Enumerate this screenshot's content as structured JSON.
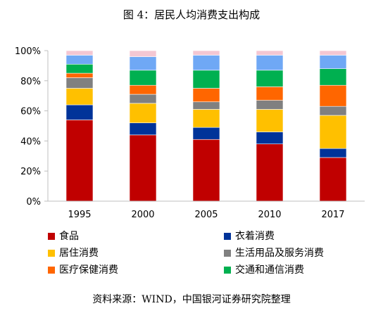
{
  "title": "图 4：居民人均消费支出构成",
  "source": "资料来源：WIND，中国银河证券研究院整理",
  "colors": {
    "food": "#c00000",
    "clothing": "#003399",
    "housing": "#ffc000",
    "household": "#808080",
    "medical": "#ff6600",
    "transport": "#00b050",
    "education": "#6fa8f5",
    "other": "#f4c7d3"
  },
  "chart_data": {
    "type": "bar",
    "stacked": true,
    "categories": [
      "1995",
      "2000",
      "2005",
      "2010",
      "2017"
    ],
    "yticks": [
      "0%",
      "20%",
      "40%",
      "60%",
      "80%",
      "100%"
    ],
    "ylim": [
      0,
      100
    ],
    "grid": false,
    "legend_position": "bottom",
    "series": [
      {
        "key": "food",
        "name": "食品",
        "values": [
          54,
          44,
          41,
          38,
          29
        ]
      },
      {
        "key": "clothing",
        "name": "衣着消费",
        "values": [
          10,
          8,
          8,
          8,
          6
        ]
      },
      {
        "key": "housing",
        "name": "居住消费",
        "values": [
          11,
          13,
          12,
          15,
          22
        ]
      },
      {
        "key": "household",
        "name": "生活用品及服务消费",
        "values": [
          7,
          6,
          5,
          6,
          6
        ]
      },
      {
        "key": "medical",
        "name": "医疗保健消费",
        "values": [
          3,
          6,
          9,
          9,
          14
        ]
      },
      {
        "key": "transport",
        "name": "交通和通信消费",
        "values": [
          6,
          10,
          12,
          11,
          11
        ]
      },
      {
        "key": "education",
        "values": [
          6,
          9,
          10,
          10,
          9
        ]
      },
      {
        "key": "other",
        "values": [
          3,
          4,
          3,
          3,
          3
        ]
      }
    ]
  }
}
